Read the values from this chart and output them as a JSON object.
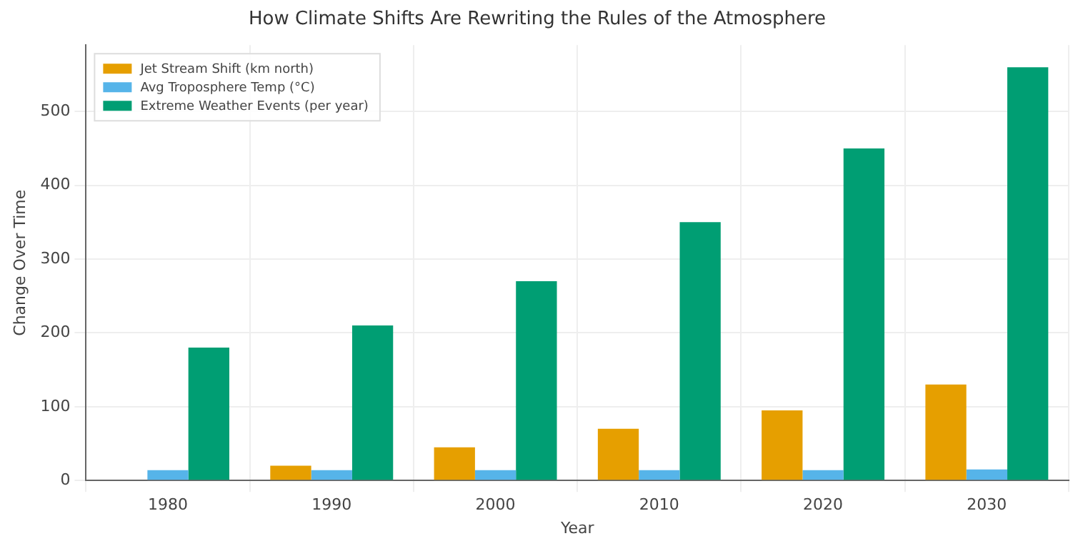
{
  "chart_data": {
    "type": "bar",
    "title": "How Climate Shifts Are Rewriting the Rules of the Atmosphere",
    "xlabel": "Year",
    "ylabel": "Change Over Time",
    "categories": [
      "1980",
      "1990",
      "2000",
      "2010",
      "2020",
      "2030"
    ],
    "series": [
      {
        "name": "Jet Stream Shift (km north)",
        "color": "#e69f00",
        "values": [
          0,
          20,
          45,
          70,
          95,
          130
        ]
      },
      {
        "name": "Avg Troposphere Temp (°C)",
        "color": "#56b4e9",
        "values": [
          14,
          14,
          14,
          14,
          14,
          15
        ]
      },
      {
        "name": "Extreme Weather Events (per year)",
        "color": "#009e73",
        "values": [
          180,
          210,
          270,
          350,
          450,
          560
        ]
      }
    ],
    "ylim": [
      0,
      590
    ],
    "yticks": [
      0,
      100,
      200,
      300,
      400,
      500
    ],
    "grid": true,
    "legend": "top left"
  }
}
